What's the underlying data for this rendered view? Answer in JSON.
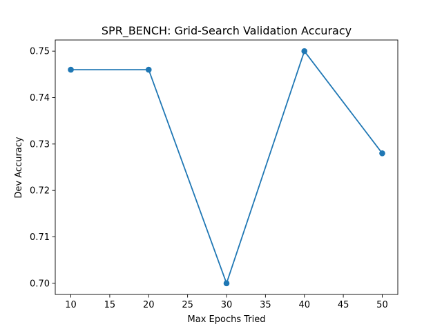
{
  "chart_data": {
    "type": "line",
    "title": "SPR_BENCH: Grid-Search Validation Accuracy",
    "xlabel": "Max Epochs Tried",
    "ylabel": "Dev Accuracy",
    "x": [
      10,
      20,
      30,
      40,
      50
    ],
    "series": [
      {
        "values": [
          0.746,
          0.746,
          0.7,
          0.75,
          0.728
        ]
      }
    ],
    "xlim": [
      8,
      52
    ],
    "ylim": [
      0.6976,
      0.7524
    ],
    "xticks": [
      10,
      15,
      20,
      25,
      30,
      35,
      40,
      45,
      50
    ],
    "xtick_labels": [
      "10",
      "15",
      "20",
      "25",
      "30",
      "35",
      "40",
      "45",
      "50"
    ],
    "yticks": [
      0.7,
      0.71,
      0.72,
      0.73,
      0.74,
      0.75
    ],
    "ytick_labels": [
      "0.70",
      "0.71",
      "0.72",
      "0.73",
      "0.74",
      "0.75"
    ],
    "grid": false,
    "line_color": "#1f77b4",
    "marker": "circle"
  }
}
